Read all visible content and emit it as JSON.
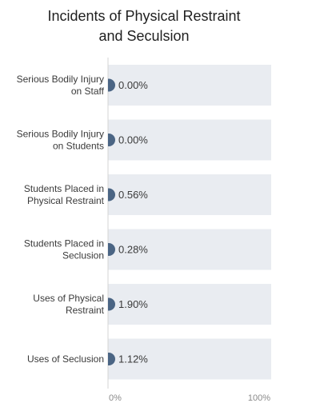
{
  "chart_data": {
    "type": "bar",
    "title": [
      "Incidents of Physical Restraint",
      "and Seculsion"
    ],
    "categories": [
      [
        "Serious Bodily Injury",
        "on Staff"
      ],
      [
        "Serious Bodily Injury",
        "on Students"
      ],
      [
        "Students Placed in",
        "Physical Restraint"
      ],
      [
        "Students Placed in",
        "Seclusion"
      ],
      [
        "Uses of Physical",
        "Restraint"
      ],
      [
        "Uses of Seclusion"
      ]
    ],
    "values": [
      0.0,
      0.0,
      0.56,
      0.28,
      1.9,
      1.12
    ],
    "value_labels": [
      "0.00%",
      "0.00%",
      "0.56%",
      "0.28%",
      "1.90%",
      "1.12%"
    ],
    "xlim": [
      0,
      100
    ],
    "x_tick_labels": [
      "0%",
      "100%"
    ],
    "orientation": "horizontal",
    "colors": {
      "bar": "#4b6584",
      "track": "#e9ecf1",
      "axis": "#d4d4d4"
    }
  }
}
